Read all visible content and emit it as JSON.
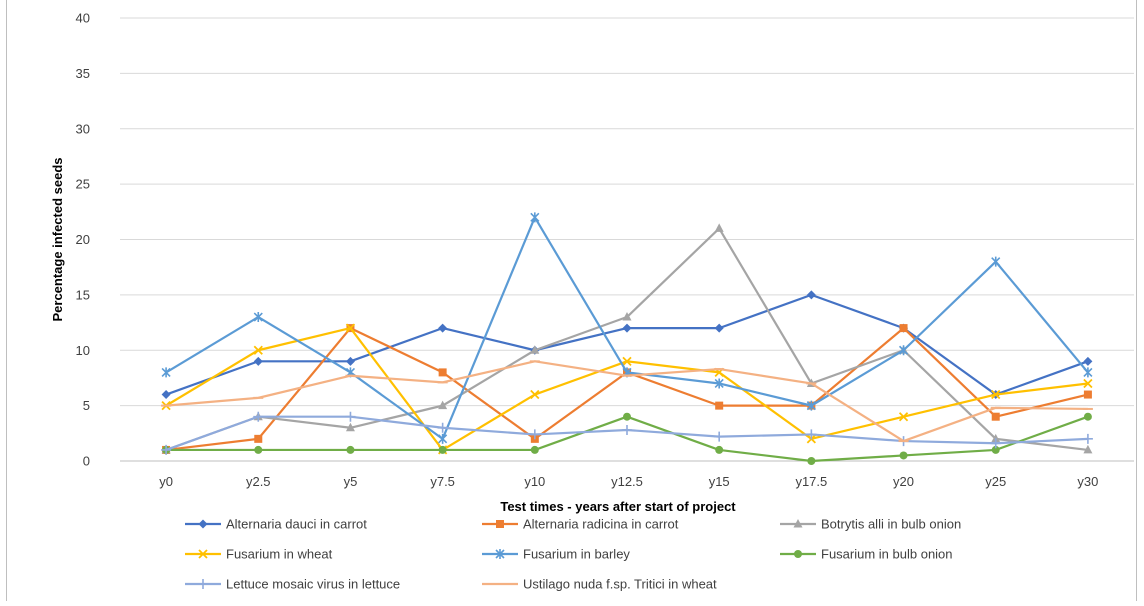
{
  "chart_data": {
    "type": "line",
    "title": "",
    "xlabel": "Test times - years after start of project",
    "ylabel": "Percentage infected  seeds",
    "ylim": [
      0,
      40
    ],
    "yticks": [
      0,
      5,
      10,
      15,
      20,
      25,
      30,
      35,
      40
    ],
    "grid": true,
    "legend_position": "bottom",
    "categories": [
      "y0",
      "y2.5",
      "y5",
      "y7.5",
      "y10",
      "y12.5",
      "y15",
      "y17.5",
      "y20",
      "y25",
      "y30"
    ],
    "series": [
      {
        "name": "Alternaria dauci in carrot",
        "color": "#4472c4",
        "marker": "diamond",
        "values": [
          6,
          9,
          9,
          12,
          10,
          12,
          12,
          15,
          12,
          6,
          9
        ]
      },
      {
        "name": "Alternaria radicina in carrot",
        "color": "#ed7d31",
        "marker": "square",
        "values": [
          1,
          2,
          12,
          8,
          2,
          8,
          5,
          5,
          12,
          4,
          6
        ]
      },
      {
        "name": "Botrytis alli in bulb onion",
        "color": "#a5a5a5",
        "marker": "triangle",
        "values": [
          1,
          4,
          3,
          5,
          10,
          13,
          21,
          7,
          10,
          2,
          1
        ]
      },
      {
        "name": "Fusarium in wheat",
        "color": "#ffc000",
        "marker": "x",
        "values": [
          5,
          10,
          12,
          1,
          6,
          9,
          8,
          2,
          4,
          6,
          7
        ]
      },
      {
        "name": "Fusarium in barley",
        "color": "#5b9bd5",
        "marker": "star",
        "values": [
          8,
          13,
          8,
          2,
          22,
          8,
          7,
          5,
          10,
          18,
          8
        ]
      },
      {
        "name": "Fusarium in bulb onion",
        "color": "#70ad47",
        "marker": "circle",
        "values": [
          1,
          1,
          1,
          1,
          1,
          4,
          1,
          0,
          0.5,
          1,
          4
        ]
      },
      {
        "name": "Lettuce mosaic virus in lettuce",
        "color": "#8faadc",
        "marker": "plus",
        "values": [
          1,
          4,
          4,
          3,
          2.4,
          2.8,
          2.2,
          2.4,
          1.8,
          1.6,
          2
        ]
      },
      {
        "name": "Ustilago nuda f.sp. Tritici in wheat",
        "color": "#f4b183",
        "marker": "dash",
        "values": [
          5,
          5.7,
          7.7,
          7.1,
          9,
          7.7,
          8.3,
          7,
          1.8,
          4.8,
          4.7
        ]
      }
    ]
  }
}
